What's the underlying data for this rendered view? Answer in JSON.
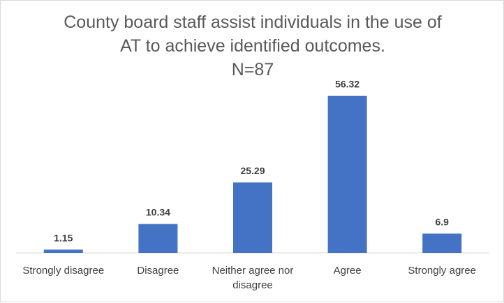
{
  "chart_data": {
    "type": "bar",
    "title": [
      "County board staff assist individuals in the use of",
      "AT to achieve identified outcomes.",
      "N=87"
    ],
    "categories": [
      [
        "Strongly disagree"
      ],
      [
        "Disagree"
      ],
      [
        "Neither agree nor",
        "disagree"
      ],
      [
        "Agree"
      ],
      [
        "Strongly agree"
      ]
    ],
    "values": [
      1.15,
      10.34,
      25.29,
      56.32,
      6.9
    ],
    "value_labels": [
      "1.15",
      "10.34",
      "25.29",
      "56.32",
      "6.9"
    ],
    "ylim": [
      0,
      60
    ],
    "bar_color": "#4472c4",
    "axis_color": "#d9d9d9",
    "grid": false,
    "legend": "none"
  }
}
